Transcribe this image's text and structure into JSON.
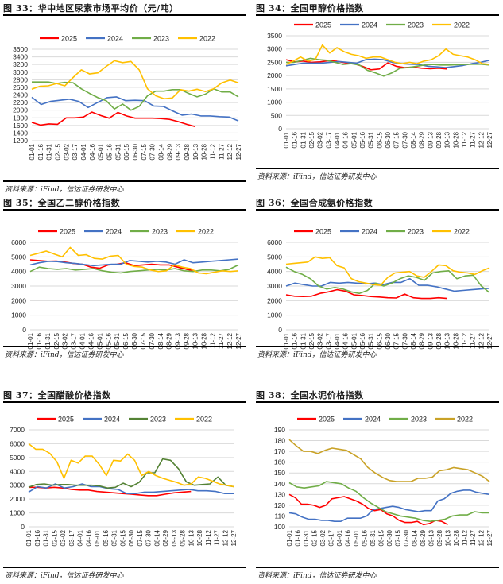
{
  "source_label": "资料来源：iFind，信达证券研发中心",
  "x_ticks": [
    "01-01",
    "01-16",
    "01-31",
    "02-15",
    "03-02",
    "03-17",
    "04-01",
    "04-16",
    "05-01",
    "05-16",
    "05-31",
    "06-15",
    "06-30",
    "07-15",
    "07-30",
    "08-14",
    "08-29",
    "09-13",
    "09-28",
    "10-13",
    "10-28",
    "11-12",
    "11-27",
    "12-12",
    "12-27"
  ],
  "legend_years": [
    "2025",
    "2024",
    "2023",
    "2022"
  ],
  "chart_data": [
    {
      "id": "fig33",
      "type": "line",
      "title": "图 33：华中地区尿素市场平均价（元/吨）",
      "xlabel": "",
      "ylabel": "",
      "ylim": [
        1200,
        3600
      ],
      "yticks": [
        1200,
        1400,
        1600,
        1800,
        2000,
        2200,
        2400,
        2600,
        2800,
        3000,
        3200,
        3400,
        3600
      ],
      "grid": true,
      "legend": "top",
      "series": [
        {
          "name": "2025",
          "color": "#ff0000",
          "values": [
            1680,
            1610,
            1640,
            1630,
            1800,
            1800,
            1820,
            1950,
            1860,
            1790,
            1940,
            1850,
            1790,
            1790,
            1790,
            1780,
            1760,
            1700,
            1630,
            1570
          ]
        },
        {
          "name": "2024",
          "color": "#4472c4",
          "values": [
            2340,
            2150,
            2230,
            2260,
            2290,
            2230,
            2070,
            2200,
            2330,
            2350,
            2250,
            2260,
            2250,
            2110,
            2100,
            1980,
            1870,
            1900,
            1850,
            1850,
            1830,
            1820,
            1720
          ]
        },
        {
          "name": "2023",
          "color": "#70ad47",
          "values": [
            2740,
            2740,
            2740,
            2700,
            2730,
            2720,
            2560,
            2440,
            2330,
            2250,
            2030,
            2160,
            2000,
            2100,
            2380,
            2500,
            2500,
            2540,
            2540,
            2440,
            2350,
            2420,
            2560,
            2480,
            2480,
            2350
          ]
        },
        {
          "name": "2022",
          "color": "#ffc000",
          "values": [
            2550,
            2630,
            2640,
            2700,
            2640,
            2860,
            3060,
            2950,
            2980,
            3150,
            3300,
            3250,
            3280,
            3060,
            2560,
            2380,
            2300,
            2320,
            2540,
            2500,
            2550,
            2490,
            2560,
            2720,
            2790,
            2720
          ]
        }
      ]
    },
    {
      "id": "fig34",
      "type": "line",
      "title": "图 34：全国甲醇价格指数",
      "xlabel": "",
      "ylabel": "",
      "ylim": [
        0,
        3500
      ],
      "yticks": [
        0,
        500,
        1000,
        1500,
        2000,
        2500,
        3000,
        3500
      ],
      "grid": true,
      "legend": "top",
      "series": [
        {
          "name": "2025",
          "color": "#ff0000",
          "values": [
            2600,
            2520,
            2550,
            2500,
            2520,
            2560,
            2540,
            2480,
            2450,
            2350,
            2220,
            2250,
            2480,
            2350,
            2300,
            2320,
            2280,
            2260,
            2280,
            2250
          ]
        },
        {
          "name": "2024",
          "color": "#4472c4",
          "values": [
            2370,
            2420,
            2470,
            2470,
            2470,
            2500,
            2530,
            2500,
            2470,
            2600,
            2620,
            2600,
            2500,
            2450,
            2430,
            2420,
            2350,
            2330,
            2300,
            2340,
            2380,
            2450,
            2500,
            2580
          ]
        },
        {
          "name": "2023",
          "color": "#70ad47",
          "values": [
            2500,
            2500,
            2580,
            2650,
            2600,
            2580,
            2500,
            2420,
            2450,
            2400,
            2200,
            2100,
            1980,
            2100,
            2280,
            2300,
            2350,
            2400,
            2420,
            2400,
            2400,
            2410,
            2420,
            2430,
            2430,
            2400
          ]
        },
        {
          "name": "2022",
          "color": "#ffc000",
          "values": [
            2420,
            2550,
            2700,
            2550,
            2600,
            3150,
            2850,
            3050,
            2900,
            2800,
            2750,
            2650,
            2700,
            2700,
            2600,
            2500,
            2450,
            2500,
            2450,
            2550,
            2600,
            2750,
            3000,
            2800,
            2750,
            2700,
            2600,
            2450,
            2420
          ]
        }
      ]
    },
    {
      "id": "fig35",
      "type": "line",
      "title": "图 35：全国乙二醇价格指数",
      "xlabel": "",
      "ylabel": "",
      "ylim": [
        0,
        6000
      ],
      "yticks": [
        0,
        1000,
        2000,
        3000,
        4000,
        5000,
        6000
      ],
      "grid": true,
      "legend": "top",
      "series": [
        {
          "name": "2025",
          "color": "#ff0000",
          "values": [
            4800,
            4750,
            4700,
            4720,
            4650,
            4550,
            4500,
            4300,
            4220,
            4450,
            4500,
            4600,
            4400,
            4450,
            4500,
            4450,
            4450,
            4300,
            4150,
            4050
          ]
        },
        {
          "name": "2024",
          "color": "#4472c4",
          "values": [
            4450,
            4600,
            4700,
            4680,
            4600,
            4550,
            4480,
            4400,
            4450,
            4500,
            4500,
            4750,
            4700,
            4650,
            4700,
            4650,
            4500,
            4800,
            4600,
            4650,
            4700,
            4750,
            4800,
            4850
          ]
        },
        {
          "name": "2023",
          "color": "#70ad47",
          "values": [
            4000,
            4300,
            4200,
            4150,
            4200,
            4100,
            4150,
            4200,
            4050,
            3950,
            3900,
            4000,
            4050,
            4100,
            4150,
            4100,
            4200,
            4050,
            4000,
            4100,
            4100,
            4050,
            4150,
            4450
          ]
        },
        {
          "name": "2022",
          "color": "#ffc000",
          "values": [
            5100,
            5250,
            5400,
            5200,
            5000,
            5650,
            5100,
            5150,
            4900,
            4850,
            5050,
            5100,
            4500,
            4350,
            4300,
            4100,
            4000,
            4050,
            4450,
            4300,
            4200,
            3900,
            3850,
            3950,
            4050,
            4000,
            4050
          ]
        }
      ]
    },
    {
      "id": "fig36",
      "type": "line",
      "title": "图 36：全国合成氨价格指数",
      "xlabel": "",
      "ylabel": "",
      "ylim": [
        0,
        6000
      ],
      "yticks": [
        0,
        1000,
        2000,
        3000,
        4000,
        5000,
        6000
      ],
      "grid": true,
      "legend": "top",
      "series": [
        {
          "name": "2025",
          "color": "#ff0000",
          "values": [
            2400,
            2300,
            2280,
            2300,
            2500,
            2600,
            2750,
            2650,
            2400,
            2350,
            2280,
            2250,
            2200,
            2180,
            2450,
            2200,
            2150,
            2150,
            2200,
            2150
          ]
        },
        {
          "name": "2024",
          "color": "#4472c4",
          "values": [
            3000,
            3200,
            3100,
            3000,
            3000,
            3250,
            3200,
            3250,
            3200,
            3150,
            3200,
            3100,
            3250,
            3250,
            3500,
            3050,
            3050,
            2950,
            2800,
            2650,
            2700,
            2750,
            2800,
            2850
          ]
        },
        {
          "name": "2023",
          "color": "#70ad47",
          "values": [
            4300,
            4000,
            3800,
            3500,
            3000,
            2800,
            2900,
            2800,
            2600,
            2500,
            2700,
            3200,
            3000,
            3200,
            3500,
            3700,
            3600,
            3400,
            3900,
            4000,
            4050,
            3500,
            3700,
            3750,
            3000,
            2550
          ]
        },
        {
          "name": "2022",
          "color": "#ffc000",
          "values": [
            4500,
            4550,
            4600,
            4650,
            5000,
            4900,
            4950,
            4400,
            4250,
            3500,
            3300,
            3200,
            3100,
            3050,
            3600,
            3900,
            3950,
            4000,
            3700,
            3600,
            4000,
            4450,
            4400,
            4050,
            3950,
            3900,
            3800,
            4050,
            4250
          ]
        }
      ]
    },
    {
      "id": "fig37",
      "type": "line",
      "title": "图 37：全国醋酸价格指数",
      "xlabel": "",
      "ylabel": "",
      "ylim": [
        0,
        7000
      ],
      "yticks": [
        0,
        1000,
        2000,
        3000,
        4000,
        5000,
        6000,
        7000
      ],
      "grid": true,
      "legend": "top",
      "series": [
        {
          "name": "2025",
          "color": "#ff0000",
          "values": [
            2850,
            2850,
            2800,
            2850,
            2800,
            2700,
            2650,
            2650,
            2550,
            2500,
            2450,
            2400,
            2350,
            2300,
            2250,
            2250,
            2350,
            2450,
            2500,
            2550
          ]
        },
        {
          "name": "2024",
          "color": "#4472c4",
          "values": [
            2500,
            2900,
            2800,
            3100,
            2800,
            2900,
            3100,
            2900,
            2900,
            2750,
            2700,
            2400,
            2400,
            2500,
            2500,
            2550,
            2600,
            2650,
            2700,
            2600,
            2600,
            2550,
            2400,
            2400
          ]
        },
        {
          "name": "2023",
          "color": "#548235",
          "values": [
            2850,
            3050,
            3100,
            3000,
            3050,
            3050,
            3000,
            3000,
            3000,
            2950,
            2800,
            2850,
            3150,
            2900,
            3200,
            3900,
            3900,
            4900,
            4800,
            4200,
            3250,
            3000,
            3050,
            3100,
            3600,
            3000,
            2900
          ]
        },
        {
          "name": "2022",
          "color": "#ffc000",
          "values": [
            6000,
            5600,
            5600,
            5300,
            4700,
            3500,
            4800,
            4600,
            5100,
            5100,
            4500,
            3700,
            4800,
            4750,
            5250,
            4800,
            3700,
            4000,
            3700,
            3500,
            3350,
            3200,
            3000,
            3100,
            3600,
            3500,
            3300,
            3100,
            3000,
            2900
          ]
        }
      ]
    },
    {
      "id": "fig38",
      "type": "line",
      "title": "图 38：全国水泥价格指数",
      "xlabel": "",
      "ylabel": "",
      "ylim": [
        100,
        190
      ],
      "yticks": [
        100,
        110,
        120,
        130,
        140,
        150,
        160,
        170,
        180,
        190
      ],
      "grid": true,
      "legend": "top",
      "series": [
        {
          "name": "2025",
          "color": "#ff0000",
          "values": [
            130,
            127,
            121,
            121,
            120,
            118,
            120,
            126,
            127,
            128,
            126,
            124,
            121,
            117,
            115,
            116,
            112,
            110,
            106,
            104,
            104,
            105,
            102,
            103,
            106,
            105,
            102
          ]
        },
        {
          "name": "2024",
          "color": "#4472c4",
          "values": [
            113,
            112,
            109,
            107,
            107,
            106,
            106,
            105,
            105,
            108,
            108,
            108,
            110,
            116,
            117,
            118,
            119,
            118,
            116,
            115,
            114,
            115,
            115,
            124,
            126,
            131,
            133,
            134,
            134,
            132,
            131,
            130
          ]
        },
        {
          "name": "2023",
          "color": "#70ad47",
          "values": [
            141,
            137,
            136,
            137,
            138,
            142,
            141,
            140,
            136,
            133,
            127,
            122,
            118,
            114,
            112,
            110,
            109,
            108,
            106,
            105,
            106,
            107,
            110,
            111,
            111,
            114,
            113,
            113
          ]
        },
        {
          "name": "2022",
          "color": "#c9a227",
          "values": [
            181,
            175,
            170,
            170,
            168,
            171,
            173,
            172,
            171,
            167,
            163,
            155,
            150,
            146,
            143,
            142,
            142,
            142,
            145,
            145,
            146,
            152,
            153,
            155,
            154,
            153,
            150,
            147,
            142
          ]
        }
      ]
    }
  ]
}
